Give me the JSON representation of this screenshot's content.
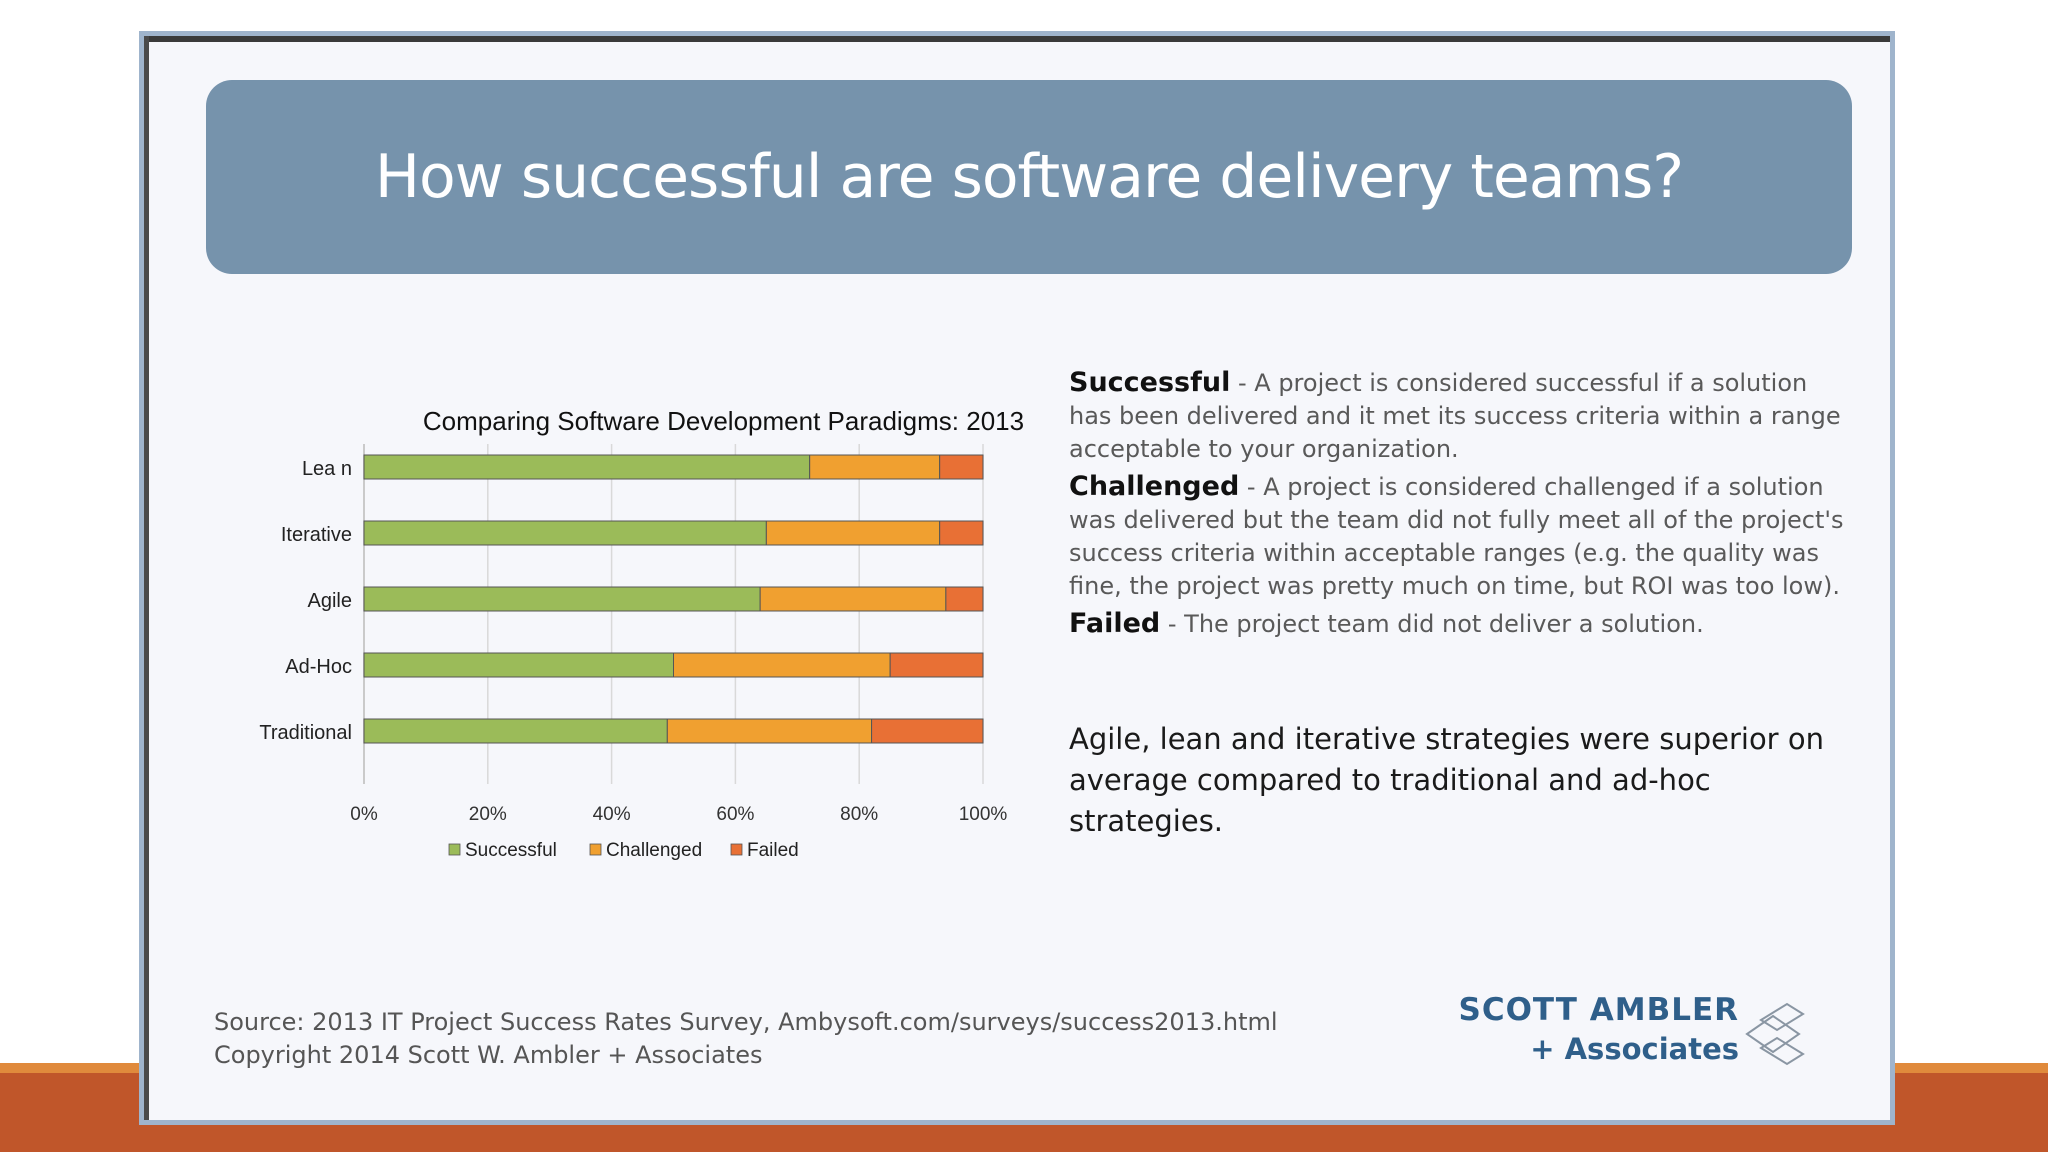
{
  "slide": {
    "title": "How successful are software delivery teams?"
  },
  "chart_data": {
    "type": "bar",
    "orientation": "horizontal",
    "stacked": true,
    "title": "Comparing Software Development Paradigms: 2013",
    "categories": [
      "Lea n",
      "Iterative",
      "Agile",
      "Ad-Hoc",
      "Traditional"
    ],
    "series": [
      {
        "name": "Successful",
        "values": [
          72,
          65,
          64,
          50,
          49
        ]
      },
      {
        "name": "Challenged",
        "values": [
          21,
          28,
          30,
          35,
          33
        ]
      },
      {
        "name": "Failed",
        "values": [
          7,
          7,
          6,
          15,
          18
        ]
      }
    ],
    "xlim": [
      0,
      100
    ],
    "x_ticks": [
      "0%",
      "20%",
      "40%",
      "60%",
      "80%",
      "100%"
    ],
    "grid": true,
    "legend": "bottom",
    "colors": [
      "#9bbb59",
      "#f0a030",
      "#e87035"
    ]
  },
  "definitions": [
    {
      "term": "Successful",
      "text": " - A project is considered successful if a solution has been delivered and it met its success criteria within a range acceptable to your organization."
    },
    {
      "term": "Challenged",
      "text": " - A project is considered challenged if a solution was delivered but the team did not fully meet all of the project's success criteria within acceptable ranges (e.g. the quality was fine, the project was pretty much on time, but ROI was too low)."
    },
    {
      "term": "Failed",
      "text": " - The project team did not deliver a solution."
    }
  ],
  "summary": "Agile, lean and iterative strategies were superior on average compared to traditional and ad-hoc strategies.",
  "footer": {
    "source": "Source: 2013 IT Project Success Rates Survey, Ambysoft.com/surveys/success2013.html",
    "copyright": "Copyright 2014 Scott W. Ambler + Associates"
  },
  "logo": {
    "line1": "SCOTT AMBLER",
    "line2": "+ Associates"
  },
  "colors": {
    "banner": "#7693ac",
    "bottom_band": "#c0562a",
    "logo_text": "#2f5f8a"
  }
}
